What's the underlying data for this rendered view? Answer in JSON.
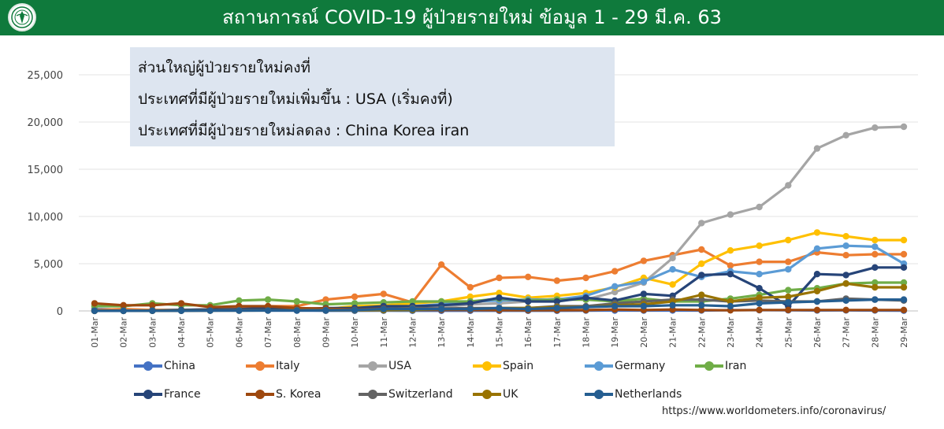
{
  "header": {
    "title": "สถานการณ์ COVID-19 ผู้ป่วยรายใหม่ ข้อมูล 1 - 29 มี.ค. 63",
    "bg_color": "#0f7a3c",
    "logo_icon": "ministry-seal-icon"
  },
  "info_box": {
    "line1": "ส่วนใหญ่ผู้ป่วยรายใหม่คงที่",
    "line2": "ประเทศที่มีผู้ป่วยรายใหม่เพิ่มขึ้น : USA  (เริ่มคงที่)",
    "line3": "ประเทศที่มีผู้ป่วยรายใหม่ลดลง  : China  Korea iran"
  },
  "source": "https://www.worldometers.info/coronavirus/",
  "chart_data": {
    "type": "line",
    "title": "",
    "xlabel": "",
    "ylabel": "",
    "ylim": [
      0,
      25000
    ],
    "yticks": [
      0,
      5000,
      10000,
      15000,
      20000,
      25000
    ],
    "ytick_labels": [
      "0",
      "5,000",
      "10,000",
      "15,000",
      "20,000",
      "25,000"
    ],
    "grid": "horizontal",
    "legend_position": "bottom",
    "categories": [
      "01-Mar",
      "02-Mar",
      "03-Mar",
      "04-Mar",
      "05-Mar",
      "06-Mar",
      "07-Mar",
      "08-Mar",
      "09-Mar",
      "10-Mar",
      "11-Mar",
      "12-Mar",
      "13-Mar",
      "14-Mar",
      "15-Mar",
      "16-Mar",
      "17-Mar",
      "18-Mar",
      "19-Mar",
      "20-Mar",
      "21-Mar",
      "22-Mar",
      "23-Mar",
      "24-Mar",
      "25-Mar",
      "26-Mar",
      "27-Mar",
      "28-Mar",
      "29-Mar"
    ],
    "series": [
      {
        "name": "China",
        "color": "#4472c4",
        "values": [
          200,
          125,
          120,
          120,
          140,
          100,
          45,
          40,
          20,
          20,
          25,
          15,
          20,
          20,
          15,
          20,
          15,
          35,
          40,
          40,
          45,
          45,
          80,
          80,
          65,
          50,
          55,
          45,
          30
        ]
      },
      {
        "name": "Italy",
        "color": "#ed7d31",
        "values": [
          100,
          200,
          100,
          100,
          150,
          300,
          500,
          500,
          1200,
          1500,
          1800,
          900,
          4900,
          2500,
          3500,
          3600,
          3200,
          3500,
          4200,
          5300,
          5900,
          6500,
          4800,
          5200,
          5200,
          6200,
          5900,
          6000,
          6000
        ]
      },
      {
        "name": "USA",
        "color": "#a5a5a5",
        "values": [
          10,
          20,
          20,
          30,
          70,
          60,
          100,
          100,
          100,
          200,
          300,
          400,
          400,
          700,
          800,
          1000,
          1300,
          1200,
          2000,
          3000,
          5600,
          9300,
          10200,
          11000,
          13300,
          17200,
          18600,
          19400,
          19500
        ]
      },
      {
        "name": "Spain",
        "color": "#ffc000",
        "values": [
          20,
          30,
          40,
          50,
          50,
          100,
          100,
          200,
          200,
          500,
          600,
          800,
          1000,
          1500,
          1900,
          1400,
          1600,
          1900,
          2500,
          3500,
          2800,
          5000,
          6400,
          6900,
          7500,
          8300,
          7900,
          7500,
          7500
        ]
      },
      {
        "name": "Germany",
        "color": "#5b9bd5",
        "values": [
          20,
          40,
          30,
          20,
          60,
          100,
          100,
          150,
          100,
          300,
          400,
          500,
          700,
          1000,
          1100,
          1200,
          1200,
          1600,
          2600,
          3100,
          4400,
          3600,
          4200,
          3900,
          4400,
          6600,
          6900,
          6800,
          5000
        ]
      },
      {
        "name": "Iran",
        "color": "#70ad47",
        "values": [
          500,
          500,
          800,
          600,
          600,
          1100,
          1200,
          1000,
          700,
          800,
          900,
          1000,
          1000,
          1000,
          1300,
          1100,
          1200,
          1200,
          1000,
          1300,
          1000,
          1000,
          1300,
          1700,
          2200,
          2400,
          2900,
          3000,
          3000
        ]
      },
      {
        "name": "France",
        "color": "#264478",
        "values": [
          30,
          10,
          20,
          100,
          150,
          190,
          300,
          200,
          300,
          300,
          500,
          500,
          600,
          800,
          1400,
          1000,
          1000,
          1400,
          1100,
          1800,
          1600,
          3800,
          3900,
          2400,
          500,
          3900,
          3800,
          4600,
          4600
        ]
      },
      {
        "name": "S. Korea",
        "color": "#9e480e",
        "values": [
          800,
          600,
          600,
          800,
          400,
          500,
          500,
          300,
          250,
          150,
          250,
          100,
          100,
          100,
          80,
          70,
          80,
          90,
          150,
          100,
          150,
          100,
          70,
          100,
          100,
          100,
          100,
          100,
          100
        ]
      },
      {
        "name": "Switzerland",
        "color": "#636363",
        "values": [
          10,
          10,
          20,
          20,
          30,
          80,
          50,
          100,
          100,
          100,
          200,
          300,
          250,
          300,
          300,
          300,
          500,
          500,
          800,
          1000,
          1200,
          1200,
          1000,
          1100,
          1000,
          1000,
          1300,
          1200,
          1100
        ]
      },
      {
        "name": "UK",
        "color": "#997300",
        "values": [
          10,
          10,
          20,
          30,
          40,
          40,
          50,
          60,
          50,
          70,
          80,
          100,
          200,
          200,
          300,
          300,
          400,
          400,
          600,
          700,
          1000,
          1700,
          1000,
          1400,
          1500,
          2100,
          2900,
          2500,
          2500
        ]
      },
      {
        "name": "Netherlands",
        "color": "#255e91",
        "values": [
          10,
          10,
          20,
          20,
          30,
          30,
          40,
          40,
          60,
          100,
          200,
          200,
          200,
          200,
          300,
          200,
          300,
          400,
          500,
          500,
          600,
          600,
          500,
          800,
          900,
          1000,
          1100,
          1200,
          1200
        ]
      }
    ]
  }
}
